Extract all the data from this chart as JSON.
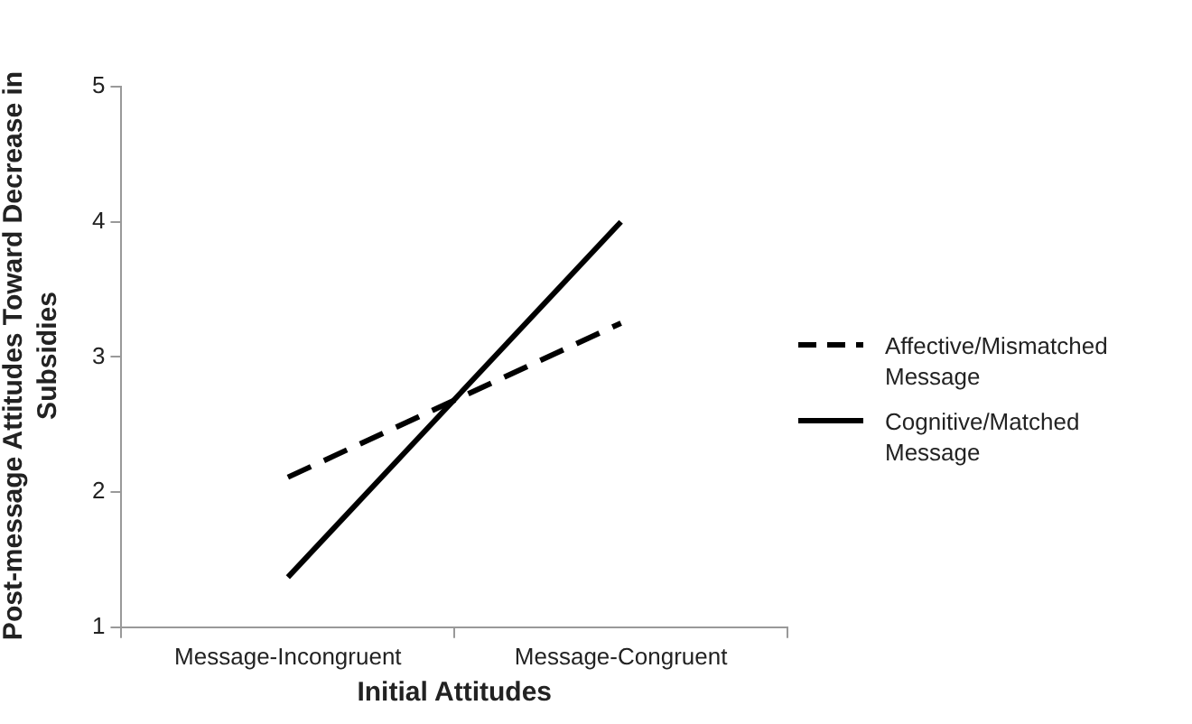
{
  "chart_data": {
    "type": "line",
    "xlabel": "Initial Attitudes",
    "ylabel": "Post-message Attitudes  Toward Decrease in Subsidies",
    "categories": [
      "Message-Incongruent",
      "Message-Congruent"
    ],
    "series": [
      {
        "name": "Affective/Mismatched Message",
        "color": "#000000",
        "values": [
          2.11,
          3.25
        ],
        "line_style": "dashed"
      },
      {
        "name": "Cognitive/Matched Message",
        "color": "#000000",
        "values": [
          1.37,
          4.0
        ],
        "line_style": "solid"
      }
    ],
    "ylim": [
      1,
      5
    ],
    "yticks": [
      1,
      2,
      3,
      4,
      5
    ],
    "grid": false,
    "legend": "right",
    "marker": "none"
  }
}
